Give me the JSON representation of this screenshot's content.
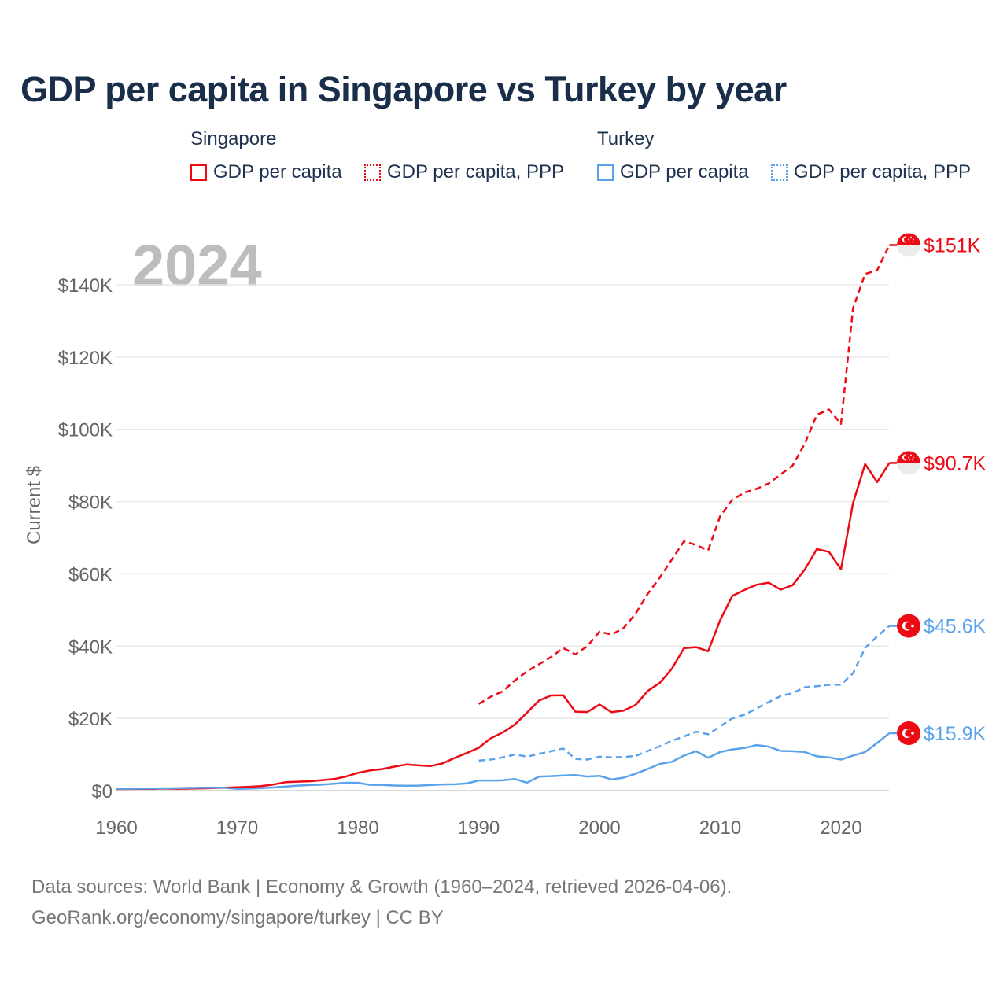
{
  "title": "GDP per capita in Singapore vs Turkey by year",
  "legend": {
    "groups": [
      {
        "name": "Singapore",
        "items": [
          "GDP per capita",
          "GDP per capita, PPP"
        ],
        "color": "#ee0a14"
      },
      {
        "name": "Turkey",
        "items": [
          "GDP per capita",
          "GDP per capita, PPP"
        ],
        "color": "#5aa3ea"
      }
    ]
  },
  "year_watermark": "2024",
  "source": {
    "line1": "Data sources: World Bank | Economy & Growth (1960–2024, retrieved 2026-04-06).",
    "line2": "GeoRank.org/economy/singapore/turkey | CC BY"
  },
  "chart_data": {
    "type": "line",
    "title": "GDP per capita in Singapore vs Turkey by year",
    "xlabel": "",
    "ylabel": "Current $",
    "xlim": [
      1960,
      2024
    ],
    "ylim": [
      0,
      150000
    ],
    "x_ticks": [
      1960,
      1970,
      1980,
      1990,
      2000,
      2010,
      2020
    ],
    "x_tick_labels": [
      "1960",
      "1970",
      "1980",
      "1990",
      "2000",
      "2010",
      "2020"
    ],
    "y_ticks": [
      0,
      20000,
      40000,
      60000,
      80000,
      100000,
      120000,
      140000
    ],
    "y_tick_labels": [
      "$0",
      "$20K",
      "$40K",
      "$60K",
      "$80K",
      "$100K",
      "$120K",
      "$140K"
    ],
    "grid": true,
    "series": [
      {
        "name": "Singapore GDP per capita",
        "country": "Singapore",
        "color": "#ee0a14",
        "dashed": false,
        "start_year": 1960,
        "end_label": "$90.7K",
        "values": [
          430,
          450,
          470,
          500,
          560,
          520,
          570,
          630,
          710,
          820,
          920,
          1070,
          1260,
          1690,
          2340,
          2490,
          2590,
          2870,
          3190,
          3900,
          4930,
          5600,
          5960,
          6630,
          7230,
          7000,
          6800,
          7540,
          9030,
          10390,
          11860,
          14500,
          16140,
          18300,
          21600,
          24950,
          26340,
          26400,
          21850,
          21760,
          23850,
          21700,
          22160,
          23730,
          27610,
          29870,
          33770,
          39430,
          39720,
          38580,
          47240,
          53890,
          55550,
          56970,
          57560,
          55650,
          56900,
          61180,
          66840,
          66070,
          61270,
          79600,
          90400,
          85400,
          90700
        ]
      },
      {
        "name": "Singapore GDP per capita, PPP",
        "country": "Singapore",
        "color": "#ee0a14",
        "dashed": true,
        "start_year": 1990,
        "end_label": "$151K",
        "values": [
          24000,
          26000,
          27500,
          30500,
          33000,
          35000,
          37000,
          39500,
          37700,
          40000,
          44000,
          43200,
          45000,
          49000,
          54500,
          59000,
          64000,
          69000,
          68000,
          66500,
          76000,
          80500,
          82500,
          83500,
          85000,
          87500,
          90000,
          96000,
          104000,
          105500,
          101500,
          133500,
          143000,
          144000,
          151000
        ]
      },
      {
        "name": "Turkey GDP per capita",
        "country": "Turkey",
        "color": "#5aa3ea",
        "dashed": false,
        "start_year": 1960,
        "end_label": "$15.9K",
        "values": [
          510,
          530,
          560,
          620,
          640,
          680,
          770,
          810,
          860,
          760,
          490,
          560,
          680,
          870,
          1130,
          1390,
          1550,
          1650,
          1920,
          2180,
          2150,
          1620,
          1570,
          1410,
          1360,
          1390,
          1540,
          1730,
          1770,
          1990,
          2800,
          2800,
          2850,
          3200,
          2200,
          3900,
          4000,
          4200,
          4300,
          3900,
          4100,
          3100,
          3600,
          4700,
          6000,
          7400,
          8000,
          9700,
          10900,
          9100,
          10700,
          11400,
          11800,
          12600,
          12200,
          11000,
          10900,
          10700,
          9500,
          9200,
          8600,
          9700,
          10700,
          13200,
          15900
        ]
      },
      {
        "name": "Turkey GDP per capita, PPP",
        "country": "Turkey",
        "color": "#5aa3ea",
        "dashed": true,
        "start_year": 1990,
        "end_label": "$45.6K",
        "values": [
          8300,
          8600,
          9200,
          10000,
          9400,
          10200,
          10900,
          11700,
          8800,
          8600,
          9400,
          9200,
          9300,
          9600,
          11000,
          12300,
          13800,
          15000,
          16300,
          15600,
          17800,
          20000,
          21000,
          22700,
          24500,
          26200,
          27000,
          28600,
          28900,
          29300,
          29300,
          32500,
          39500,
          42700,
          45600
        ]
      }
    ]
  }
}
